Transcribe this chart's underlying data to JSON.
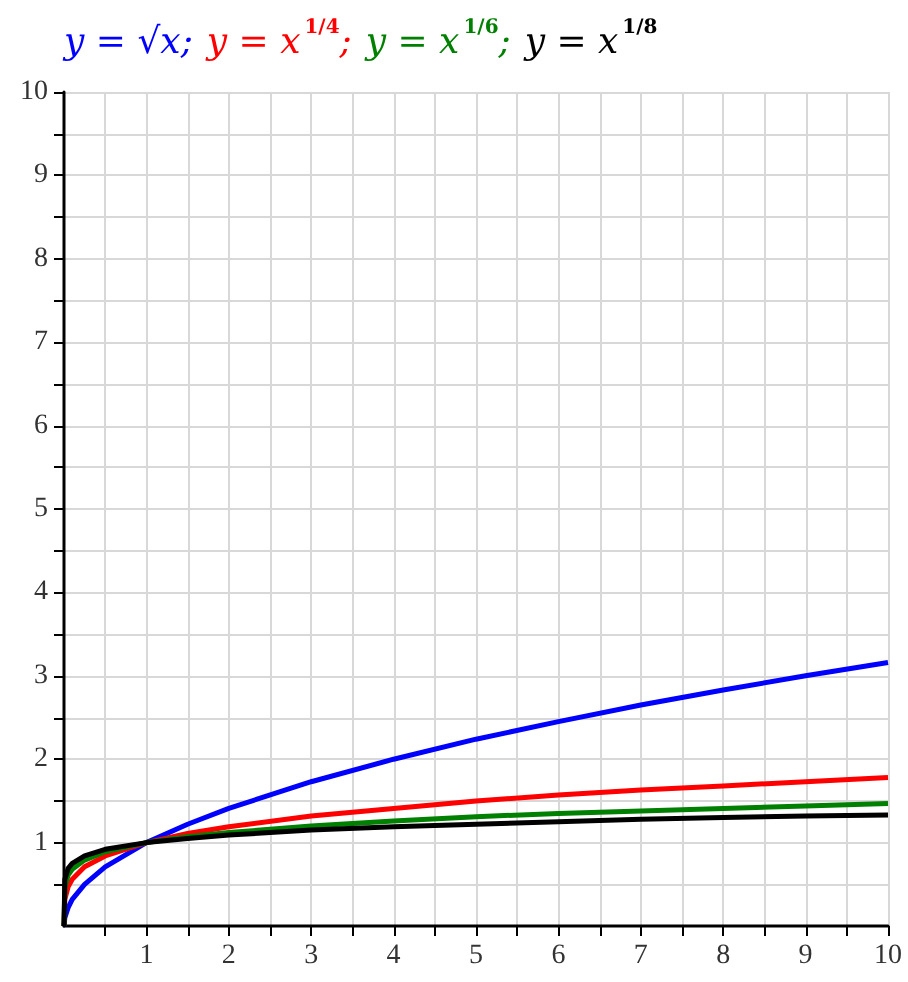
{
  "chart_data": {
    "type": "line",
    "legend": "top left",
    "grid": true,
    "marker": "none",
    "line_style": "solid",
    "x": [
      0,
      0.01,
      0.05,
      0.1,
      0.25,
      0.5,
      1,
      1.5,
      2,
      3,
      4,
      5,
      6,
      7,
      8,
      9,
      10
    ],
    "xlim": [
      0,
      10
    ],
    "ylim": [
      0,
      10
    ],
    "xticks": [
      {
        "value": 0.5,
        "label": null
      },
      1,
      {
        "value": 1.5,
        "label": null
      },
      2,
      {
        "value": 2.5,
        "label": null
      },
      3,
      {
        "value": 3.5,
        "label": null
      },
      4,
      {
        "value": 4.5,
        "label": null
      },
      5,
      {
        "value": 5.5,
        "label": null
      },
      6,
      {
        "value": 6.5,
        "label": null
      },
      7,
      {
        "value": 7.5,
        "label": null
      },
      8,
      {
        "value": 8.5,
        "label": null
      },
      9,
      {
        "value": 9.5,
        "label": null
      },
      10
    ],
    "yticks": [
      {
        "value": 0.5,
        "label": null
      },
      1,
      {
        "value": 1.5,
        "label": null
      },
      2,
      {
        "value": 2.5,
        "label": null
      },
      3,
      {
        "value": 3.5,
        "label": null
      },
      4,
      {
        "value": 4.5,
        "label": null
      },
      5,
      {
        "value": 5.5,
        "label": null
      },
      6,
      {
        "value": 6.5,
        "label": null
      },
      7,
      {
        "value": 7.5,
        "label": null
      },
      8,
      {
        "value": 8.5,
        "label": null
      },
      9,
      {
        "value": 9.5,
        "label": null
      },
      10
    ],
    "series": [
      {
        "name": "y = √x;",
        "color": "#0000ff",
        "values": [
          0,
          0.1,
          0.22,
          0.32,
          0.5,
          0.71,
          1,
          1.22,
          1.41,
          1.73,
          2,
          2.24,
          2.45,
          2.65,
          2.83,
          3,
          3.16
        ]
      },
      {
        "name": "y = x$^{1/4}$;",
        "color": "#ff0000",
        "values": [
          0,
          0.32,
          0.47,
          0.56,
          0.71,
          0.84,
          1,
          1.11,
          1.19,
          1.32,
          1.41,
          1.5,
          1.57,
          1.63,
          1.68,
          1.73,
          1.78
        ]
      },
      {
        "name": "y = x$^{1/6}$;",
        "color": "#008000",
        "values": [
          0,
          0.46,
          0.61,
          0.68,
          0.79,
          0.89,
          1,
          1.07,
          1.12,
          1.2,
          1.26,
          1.31,
          1.35,
          1.38,
          1.41,
          1.44,
          1.47
        ]
      },
      {
        "name": "y = x$^{1/8}$",
        "color": "#000000",
        "values": [
          0,
          0.56,
          0.69,
          0.75,
          0.84,
          0.92,
          1,
          1.05,
          1.09,
          1.15,
          1.19,
          1.22,
          1.25,
          1.28,
          1.3,
          1.32,
          1.33
        ]
      }
    ]
  }
}
